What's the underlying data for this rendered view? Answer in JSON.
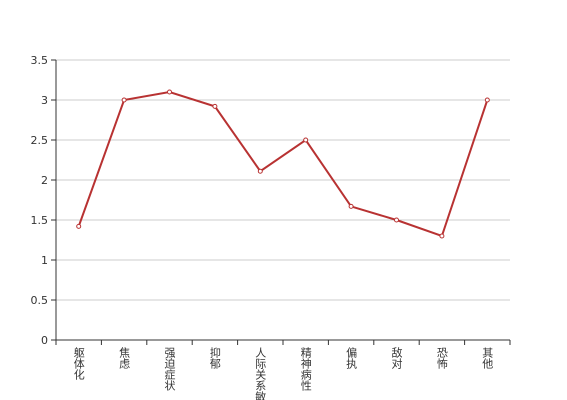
{
  "chart_data": {
    "type": "line",
    "categories": [
      "躯体化",
      "焦虑",
      "强迫症状",
      "抑郁",
      "人际关系敏感",
      "精神病性",
      "偏执",
      "敌对",
      "恐怖",
      "其他"
    ],
    "series": [
      {
        "color": "#b83232",
        "values": [
          1.42,
          3.0,
          3.1,
          2.92,
          2.11,
          2.5,
          1.67,
          1.5,
          1.3,
          3.0
        ]
      }
    ],
    "ylim": [
      0,
      3.5
    ],
    "yticks": [
      0,
      0.5,
      1,
      1.5,
      2,
      2.5,
      3,
      3.5
    ],
    "grid": true
  }
}
